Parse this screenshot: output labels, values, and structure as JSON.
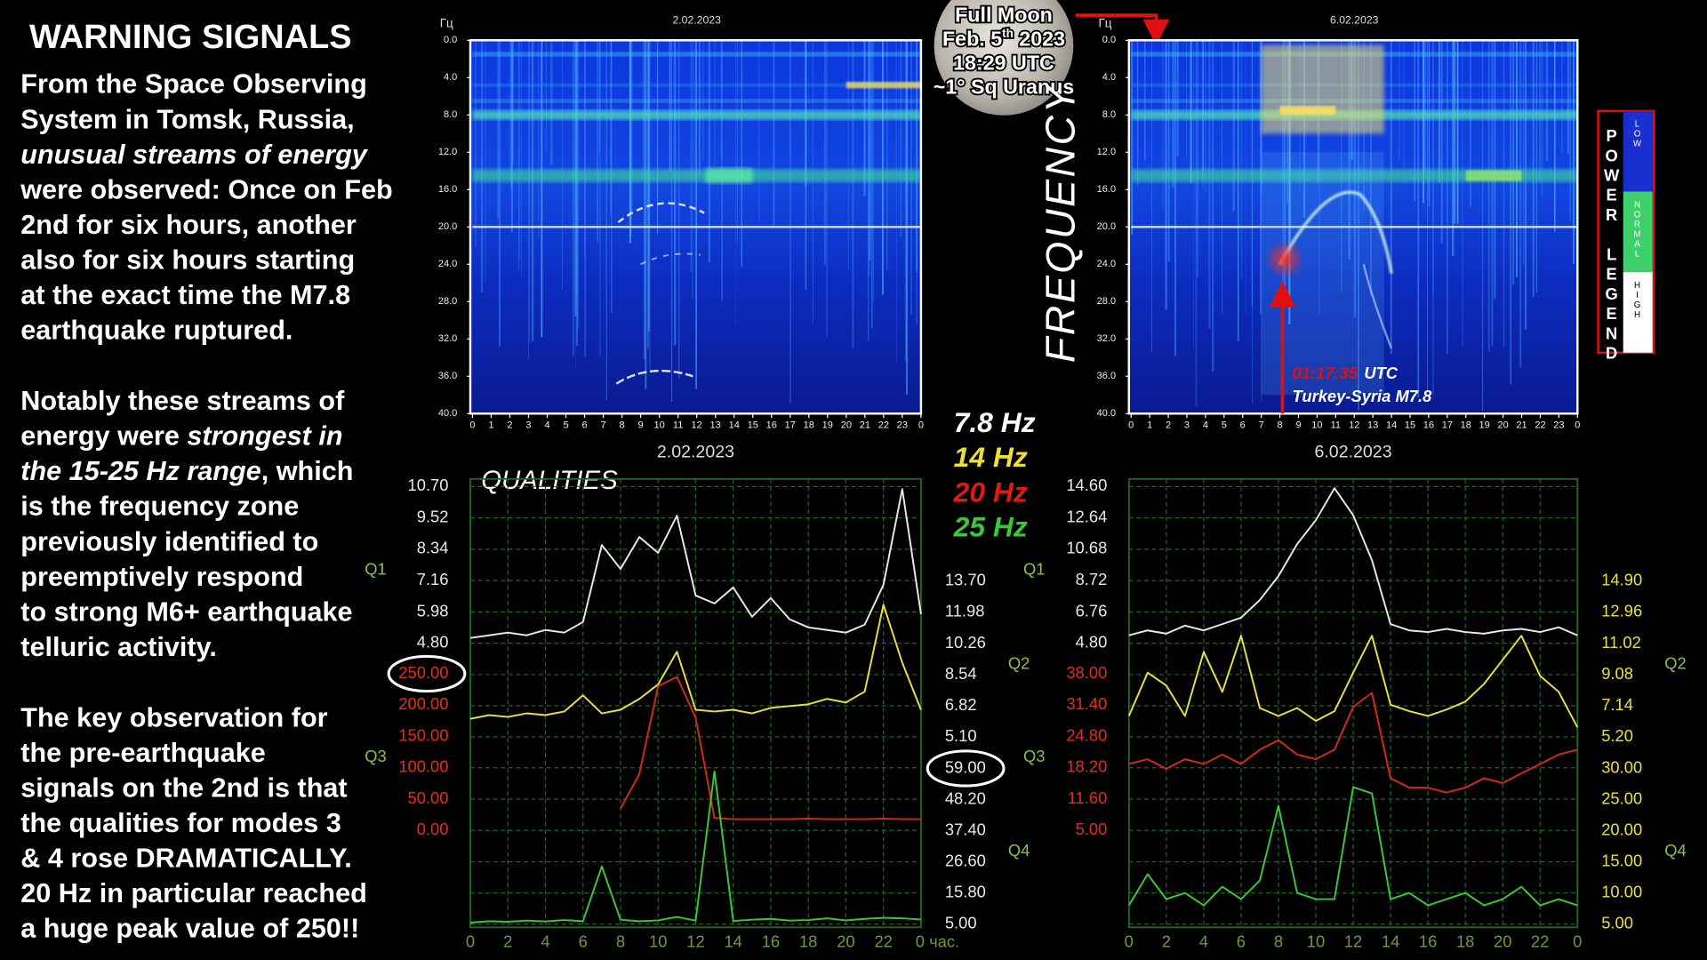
{
  "sidebar": {
    "title": "WARNING SIGNALS",
    "paragraphs": [
      [
        [
          "From the Space Observing"
        ],
        [
          "System in Tomsk, Russia,"
        ],
        [
          {
            "text": "unusual streams of energy",
            "italic": true
          }
        ],
        [
          "were observed: Once on Feb"
        ],
        [
          "2nd for six hours, another"
        ],
        [
          "also for six hours starting"
        ],
        [
          "at the exact time the M7.8"
        ],
        [
          "earthquake ruptured."
        ]
      ],
      [
        [
          "Notably these streams of"
        ],
        [
          "energy were ",
          {
            "text": "strongest in",
            "italic": true
          }
        ],
        [
          {
            "text": "the 15-25 Hz range",
            "italic": true
          },
          ", which"
        ],
        [
          "is the frequency zone"
        ],
        [
          "previously identified to"
        ],
        [
          "preemptively respond"
        ],
        [
          "to strong M6+ earthquake"
        ],
        [
          "telluric activity."
        ]
      ],
      [
        [
          "The key observation for"
        ],
        [
          "the pre-earthquake"
        ],
        [
          "signals on the 2nd is that"
        ],
        [
          "the qualities for modes 3"
        ],
        [
          "& 4 rose DRAMATICALLY."
        ],
        [
          "20 Hz in particular reached"
        ],
        [
          "a huge peak value of 250!!"
        ]
      ]
    ]
  },
  "moon_label": {
    "line1": "Full Moon",
    "line2": {
      "before": "Feb. 5",
      "sup": "th",
      "after": " 2023"
    },
    "line3": "18:29 UTC",
    "line4": "~1° Sq Uranus"
  },
  "frequency_label": "FREQUENCY",
  "hz_legend": [
    {
      "label": "7.8 Hz",
      "color": "#ffffff"
    },
    {
      "label": "14 Hz",
      "color": "#f0e030"
    },
    {
      "label": "20 Hz",
      "color": "#e01a10"
    },
    {
      "label": "25 Hz",
      "color": "#3ac83a"
    }
  ],
  "power_legend": {
    "title": "POWER LEGEND",
    "levels": [
      {
        "label": "LOW",
        "color": "#1a2fd0"
      },
      {
        "label": "NORMAL",
        "color": "#3ccf6a"
      },
      {
        "label": "HIGH",
        "color": "#ffffff"
      }
    ]
  },
  "quake_label": {
    "time": "01:17:35",
    "zone": "UTC",
    "place": "Turkey-Syria M7.8"
  },
  "chart_data": [
    {
      "type": "spectrogram",
      "title": "2.02.2023",
      "y_label": "Гц",
      "xlim": [
        0,
        24
      ],
      "ylim": [
        0,
        40
      ],
      "xticks": [
        0,
        1,
        2,
        3,
        4,
        5,
        6,
        7,
        8,
        9,
        10,
        11,
        12,
        13,
        14,
        15,
        16,
        17,
        18,
        19,
        20,
        21,
        22,
        23,
        {
          "value": 24,
          "label": "0"
        }
      ],
      "yticks": [
        {
          "value": 0,
          "label": "0.0"
        },
        {
          "value": 4,
          "label": "4.0"
        },
        {
          "value": 8,
          "label": "8.0"
        },
        {
          "value": 12,
          "label": "12.0"
        },
        {
          "value": 16,
          "label": "16.0"
        },
        {
          "value": 20,
          "label": "20.0"
        },
        {
          "value": 24,
          "label": "24.0"
        },
        {
          "value": 28,
          "label": "28.0"
        },
        {
          "value": 32,
          "label": "32.0"
        },
        {
          "value": 36,
          "label": "36.0"
        },
        {
          "value": 40,
          "label": "40.0"
        }
      ]
    },
    {
      "type": "spectrogram",
      "title": "6.02.2023",
      "y_label": "Гц",
      "xlim": [
        0,
        24
      ],
      "ylim": [
        0,
        40
      ],
      "xticks": [
        0,
        1,
        2,
        3,
        4,
        5,
        6,
        7,
        8,
        9,
        10,
        11,
        12,
        13,
        14,
        15,
        16,
        17,
        18,
        19,
        20,
        21,
        22,
        23,
        {
          "value": 24,
          "label": "0"
        }
      ],
      "yticks": [
        {
          "value": 0,
          "label": "0.0"
        },
        {
          "value": 4,
          "label": "4.0"
        },
        {
          "value": 8,
          "label": "8.0"
        },
        {
          "value": 12,
          "label": "12.0"
        },
        {
          "value": 16,
          "label": "16.0"
        },
        {
          "value": 20,
          "label": "20.0"
        },
        {
          "value": 24,
          "label": "24.0"
        },
        {
          "value": 28,
          "label": "28.0"
        },
        {
          "value": 32,
          "label": "32.0"
        },
        {
          "value": 36,
          "label": "36.0"
        },
        {
          "value": 40,
          "label": "40.0"
        }
      ]
    },
    {
      "type": "line",
      "title": "2.02.2023",
      "annotation": "QUALITIES",
      "grid": true,
      "x": [
        0,
        1,
        2,
        3,
        4,
        5,
        6,
        7,
        8,
        9,
        10,
        11,
        12,
        13,
        14,
        15,
        16,
        17,
        18,
        19,
        20,
        21,
        22,
        23,
        24
      ],
      "xlim": [
        0,
        24
      ],
      "xticks": [
        0,
        2,
        4,
        6,
        8,
        10,
        12,
        14,
        16,
        18,
        20,
        22,
        {
          "value": 24,
          "label": "0 час."
        }
      ],
      "series": [
        {
          "name": "Q1",
          "color": "#e8e8e8",
          "tick_color": "#e8e8e8",
          "axis": "y",
          "ylim": [
            4.8,
            10.7
          ],
          "yticks": [
            {
              "value": 4.8,
              "label": "4.80"
            },
            {
              "value": 5.98,
              "label": "5.98"
            },
            {
              "value": 7.16,
              "label": "7.16"
            },
            {
              "value": 8.34,
              "label": "8.34"
            },
            {
              "value": 9.52,
              "label": "9.52"
            },
            {
              "value": 10.7,
              "label": "10.70"
            }
          ],
          "values": [
            5.0,
            5.1,
            5.2,
            5.1,
            5.3,
            5.2,
            5.6,
            8.5,
            7.6,
            8.8,
            8.2,
            9.6,
            6.6,
            6.3,
            6.9,
            5.8,
            6.5,
            5.7,
            5.4,
            5.3,
            5.2,
            5.5,
            7.0,
            10.6,
            5.9
          ]
        },
        {
          "name": "Q2",
          "color": "#e8e040",
          "tick_color": "#e8e8e8",
          "axis": "y2",
          "ylim": [
            5.1,
            13.7
          ],
          "yticks": [
            {
              "value": 5.1,
              "label": "5.10"
            },
            {
              "value": 6.82,
              "label": "6.82"
            },
            {
              "value": 8.54,
              "label": "8.54"
            },
            {
              "value": 10.26,
              "label": "10.26"
            },
            {
              "value": 11.98,
              "label": "11.98"
            },
            {
              "value": 13.7,
              "label": "13.70"
            }
          ],
          "values": [
            6.1,
            6.3,
            6.2,
            6.4,
            6.3,
            6.5,
            7.4,
            6.4,
            6.6,
            7.2,
            8.0,
            9.8,
            6.6,
            6.5,
            6.6,
            6.4,
            6.7,
            6.8,
            6.9,
            7.2,
            7.0,
            7.6,
            12.4,
            9.2,
            6.6
          ]
        },
        {
          "name": "Q3",
          "color": "#d42a1a",
          "tick_color": "#e0301c",
          "axis": "y",
          "ylim": [
            0,
            250
          ],
          "yticks": [
            {
              "value": 0,
              "label": "0.00"
            },
            {
              "value": 50,
              "label": "50.00"
            },
            {
              "value": 100,
              "label": "100.00"
            },
            {
              "value": 150,
              "label": "150.00"
            },
            {
              "value": 200,
              "label": "200.00"
            },
            {
              "value": 250,
              "label": "250.00"
            }
          ],
          "values": [
            null,
            null,
            null,
            null,
            null,
            null,
            null,
            null,
            35,
            90,
            230,
            245,
            180,
            20,
            18,
            18,
            18,
            18,
            19,
            18,
            18,
            18,
            19,
            18,
            18
          ]
        },
        {
          "name": "Q4",
          "color": "#3ac83a",
          "tick_color": "#e8e8e8",
          "axis": "y2",
          "ylim": [
            5,
            59
          ],
          "yticks": [
            {
              "value": 5,
              "label": "5.00"
            },
            {
              "value": 15.8,
              "label": "15.80"
            },
            {
              "value": 26.6,
              "label": "26.60"
            },
            {
              "value": 37.4,
              "label": "37.40"
            },
            {
              "value": 48.2,
              "label": "48.20"
            },
            {
              "value": 59,
              "label": "59.00"
            }
          ],
          "values": [
            5.5,
            6.0,
            5.8,
            6.2,
            5.9,
            6.4,
            6.0,
            25,
            6.5,
            6.0,
            6.3,
            7.5,
            6.2,
            58,
            6.1,
            6.5,
            6.8,
            6.2,
            6.4,
            7.0,
            6.3,
            6.8,
            7.2,
            7.0,
            6.6
          ]
        }
      ]
    },
    {
      "type": "line",
      "title": "6.02.2023",
      "grid": true,
      "x": [
        0,
        1,
        2,
        3,
        4,
        5,
        6,
        7,
        8,
        9,
        10,
        11,
        12,
        13,
        14,
        15,
        16,
        17,
        18,
        19,
        20,
        21,
        22,
        23,
        24
      ],
      "xlim": [
        0,
        24
      ],
      "xticks": [
        0,
        2,
        4,
        6,
        8,
        10,
        12,
        14,
        16,
        18,
        20,
        22,
        {
          "value": 24,
          "label": "0"
        }
      ],
      "series": [
        {
          "name": "Q1",
          "color": "#e8e8e8",
          "tick_color": "#e8e8e8",
          "axis": "y",
          "ylim": [
            4.8,
            14.6
          ],
          "yticks": [
            {
              "value": 4.8,
              "label": "4.80"
            },
            {
              "value": 6.76,
              "label": "6.76"
            },
            {
              "value": 8.72,
              "label": "8.72"
            },
            {
              "value": 10.68,
              "label": "10.68"
            },
            {
              "value": 12.64,
              "label": "12.64"
            },
            {
              "value": 14.6,
              "label": "14.60"
            }
          ],
          "values": [
            5.3,
            5.6,
            5.4,
            5.9,
            5.6,
            6.0,
            6.4,
            7.5,
            9.0,
            11.0,
            12.5,
            14.5,
            12.8,
            10.0,
            6.0,
            5.6,
            5.5,
            5.7,
            5.5,
            5.4,
            5.6,
            5.7,
            5.5,
            5.8,
            5.3
          ]
        },
        {
          "name": "Q2",
          "color": "#e8e040",
          "tick_color": "#e8e040",
          "axis": "y2",
          "ylim": [
            5.2,
            14.9
          ],
          "yticks": [
            {
              "value": 5.2,
              "label": "5.20"
            },
            {
              "value": 7.14,
              "label": "7.14"
            },
            {
              "value": 9.08,
              "label": "9.08"
            },
            {
              "value": 11.02,
              "label": "11.02"
            },
            {
              "value": 12.96,
              "label": "12.96"
            },
            {
              "value": 14.9,
              "label": "14.90"
            }
          ],
          "values": [
            6.5,
            9.2,
            8.4,
            6.5,
            10.5,
            8.0,
            11.5,
            7.0,
            6.5,
            7.0,
            6.2,
            6.8,
            9.2,
            11.5,
            7.2,
            6.8,
            6.5,
            6.9,
            7.4,
            8.5,
            10.0,
            11.5,
            9.0,
            8.0,
            5.8
          ]
        },
        {
          "name": "Q3",
          "color": "#d42a1a",
          "tick_color": "#e0301c",
          "axis": "y",
          "ylim": [
            5,
            38
          ],
          "yticks": [
            {
              "value": 5,
              "label": "5.00"
            },
            {
              "value": 11.6,
              "label": "11.60"
            },
            {
              "value": 18.2,
              "label": "18.20"
            },
            {
              "value": 24.8,
              "label": "24.80"
            },
            {
              "value": 31.4,
              "label": "31.40"
            },
            {
              "value": 38,
              "label": "38.00"
            }
          ],
          "values": [
            19,
            20,
            18,
            20,
            19,
            21,
            19,
            22,
            24,
            21,
            20,
            22,
            31,
            34,
            16,
            14,
            14,
            13,
            14,
            16,
            15,
            17,
            19,
            21,
            22
          ]
        },
        {
          "name": "Q4",
          "color": "#3ac83a",
          "tick_color": "#e8e040",
          "axis": "y2",
          "ylim": [
            5,
            30
          ],
          "yticks": [
            {
              "value": 5,
              "label": "5.00"
            },
            {
              "value": 10,
              "label": "10.00"
            },
            {
              "value": 15,
              "label": "15.00"
            },
            {
              "value": 20,
              "label": "20.00"
            },
            {
              "value": 25,
              "label": "25.00"
            },
            {
              "value": 30,
              "label": "30.00"
            }
          ],
          "values": [
            8,
            13,
            9,
            10,
            8,
            11,
            9,
            12,
            24,
            10,
            9,
            9,
            27,
            26,
            9,
            10,
            8,
            9,
            10,
            8,
            9,
            11,
            8,
            9,
            8
          ]
        }
      ]
    }
  ]
}
